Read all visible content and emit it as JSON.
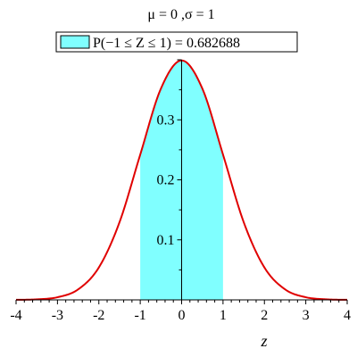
{
  "chart_data": {
    "type": "area",
    "title": "μ = 0 ,σ = 1",
    "legend": {
      "label": "P(−1 ≤ Z ≤ 1) = 0.682688",
      "placement": "top-center"
    },
    "xlabel": "z",
    "ylabel": "",
    "xlim": [
      -4,
      4
    ],
    "ylim": [
      0,
      0.4
    ],
    "grid": false,
    "x_ticks": [
      {
        "value": -4,
        "label": "-4"
      },
      {
        "value": -3,
        "label": "-3"
      },
      {
        "value": -2,
        "label": "-2"
      },
      {
        "value": -1,
        "label": "-1"
      },
      {
        "value": 0,
        "label": "0"
      },
      {
        "value": 1,
        "label": "1"
      },
      {
        "value": 2,
        "label": "2"
      },
      {
        "value": 3,
        "label": "3"
      },
      {
        "value": 4,
        "label": "4"
      }
    ],
    "y_ticks": [
      {
        "value": 0.1,
        "label": "0.1"
      },
      {
        "value": 0.2,
        "label": "0.2"
      },
      {
        "value": 0.3,
        "label": "0.3"
      }
    ],
    "series": [
      {
        "kind": "line",
        "color": "#e00000",
        "x": [
          -4,
          -3.5,
          -3,
          -2.5,
          -2,
          -1.5,
          -1,
          -0.5,
          0,
          0.5,
          1,
          1.5,
          2,
          2.5,
          3,
          3.5,
          4
        ],
        "values": [
          0.0001,
          0.0009,
          0.0044,
          0.0175,
          0.054,
          0.1295,
          0.242,
          0.3521,
          0.3989,
          0.3521,
          0.242,
          0.1295,
          0.054,
          0.0175,
          0.0044,
          0.0009,
          0.0001
        ]
      }
    ],
    "shaded_region": {
      "from": -1,
      "to": 1,
      "color": "#80ffff"
    }
  }
}
